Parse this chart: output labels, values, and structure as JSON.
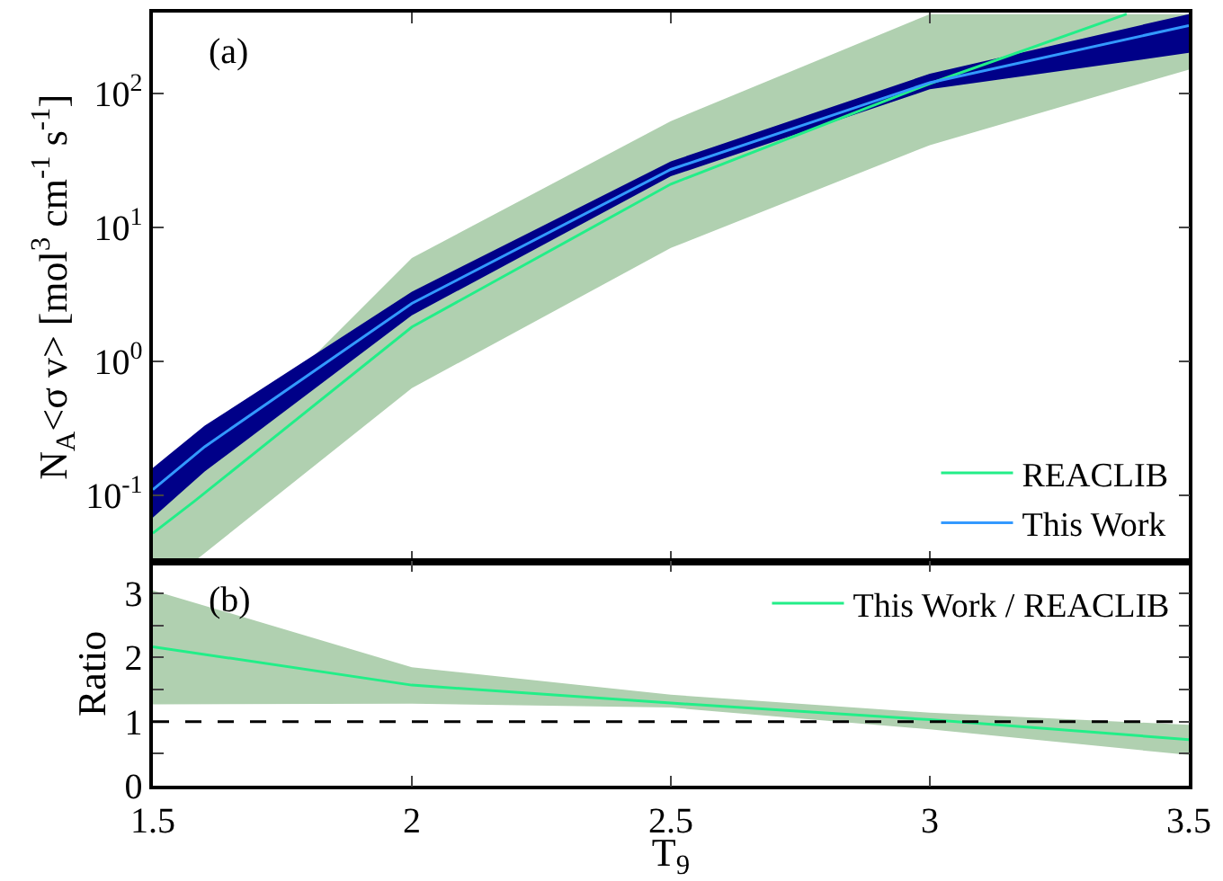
{
  "chart_data": [
    {
      "type": "line",
      "log": true,
      "ylabel": "N$_{A}$<σ v> [mol$^{3}$ cm$^{-1}$ s$^{-1}$]",
      "xlim": [
        1.5,
        3.5
      ],
      "xticks": [
        1.5,
        2,
        2.5,
        3,
        3.5
      ],
      "ylim": [
        0.032,
        400
      ],
      "yticks": [
        {
          "value": 0.1,
          "label": "10$^{-1}$"
        },
        {
          "value": 1,
          "label": "10$^{0}$"
        },
        {
          "value": 10,
          "label": "10$^{1}$"
        },
        {
          "value": 100,
          "label": "10$^{2}$"
        }
      ],
      "tick_labels": "y",
      "legend": "bottom right",
      "annotations": [
        "(a)"
      ],
      "series": [
        {
          "name": "REACLIB",
          "color": "#22ee88",
          "x": [
            1.5,
            1.58,
            2,
            2.5,
            3,
            3.38,
            3.5
          ],
          "values": [
            0.052,
            0.09,
            1.8,
            21,
            118,
            390,
            null
          ],
          "lower": [
            0.032,
            0.032,
            0.63,
            7,
            41,
            110,
            150
          ],
          "upper": [
            0.07,
            0.14,
            5.9,
            62,
            390,
            390,
            390
          ]
        },
        {
          "name": "This Work",
          "color": "#3399ff",
          "x": [
            1.5,
            1.6,
            2,
            2.5,
            3,
            3.5
          ],
          "values": [
            0.11,
            0.23,
            2.7,
            27,
            120,
            320
          ],
          "lower": [
            0.068,
            0.15,
            2.2,
            24,
            107,
            200
          ],
          "upper": [
            0.16,
            0.33,
            3.3,
            31,
            140,
            390
          ]
        }
      ]
    },
    {
      "type": "line",
      "xlabel": "T$_{9}$",
      "ylabel": "Ratio",
      "xlim": [
        1.5,
        3.5
      ],
      "xticks": [
        1.5,
        2,
        2.5,
        3,
        3.5
      ],
      "ylim": [
        0,
        3.5
      ],
      "yticks": [
        0,
        {
          "value": 0.5,
          "label": null
        },
        1,
        {
          "value": 1.5,
          "label": null
        },
        2,
        {
          "value": 2.5,
          "label": null
        },
        3
      ],
      "legend": "top right",
      "annotations": [
        "(b)"
      ],
      "ref_lines": [
        {
          "axis": "y",
          "value": 1,
          "label": null,
          "color": "#000000",
          "line_style": "dashed"
        }
      ],
      "series": [
        {
          "name": "This Work / REACLIB",
          "color": "#22ee88",
          "x": [
            1.5,
            2,
            2.5,
            3,
            3.5
          ],
          "values": [
            2.17,
            1.57,
            1.29,
            1.03,
            0.72
          ],
          "lower": [
            1.27,
            1.28,
            1.22,
            0.88,
            0.48
          ],
          "upper": [
            3.05,
            1.85,
            1.42,
            1.14,
            0.95
          ]
        }
      ]
    }
  ]
}
